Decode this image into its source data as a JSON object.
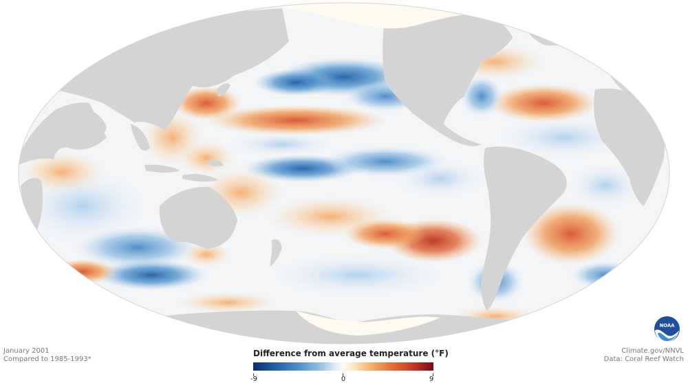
{
  "meta": {
    "date": "January 2001",
    "baseline": "Compared to 1985-1993*",
    "source_site": "Climate.gov/NNVL",
    "source_data": "Data: Coral Reef Watch"
  },
  "legend": {
    "title": "Difference from average temperature (°F)",
    "min_label": "-9",
    "mid_label": "0",
    "max_label": "9",
    "range": [
      -9,
      9
    ],
    "colors": [
      "#0a2d6b",
      "#1f5fa8",
      "#4b8fcb",
      "#9cc4e6",
      "#e3eef8",
      "#fbfaf4",
      "#fde8bf",
      "#f6b26b",
      "#e8733a",
      "#c83b22",
      "#7a0b1a"
    ]
  },
  "map": {
    "projection": "Mollweide",
    "land_color": "#d4d4d4",
    "ice_color": "#fdfaf0"
  },
  "logo": {
    "text": "NOAA",
    "icon": "noaa-logo-icon"
  }
}
